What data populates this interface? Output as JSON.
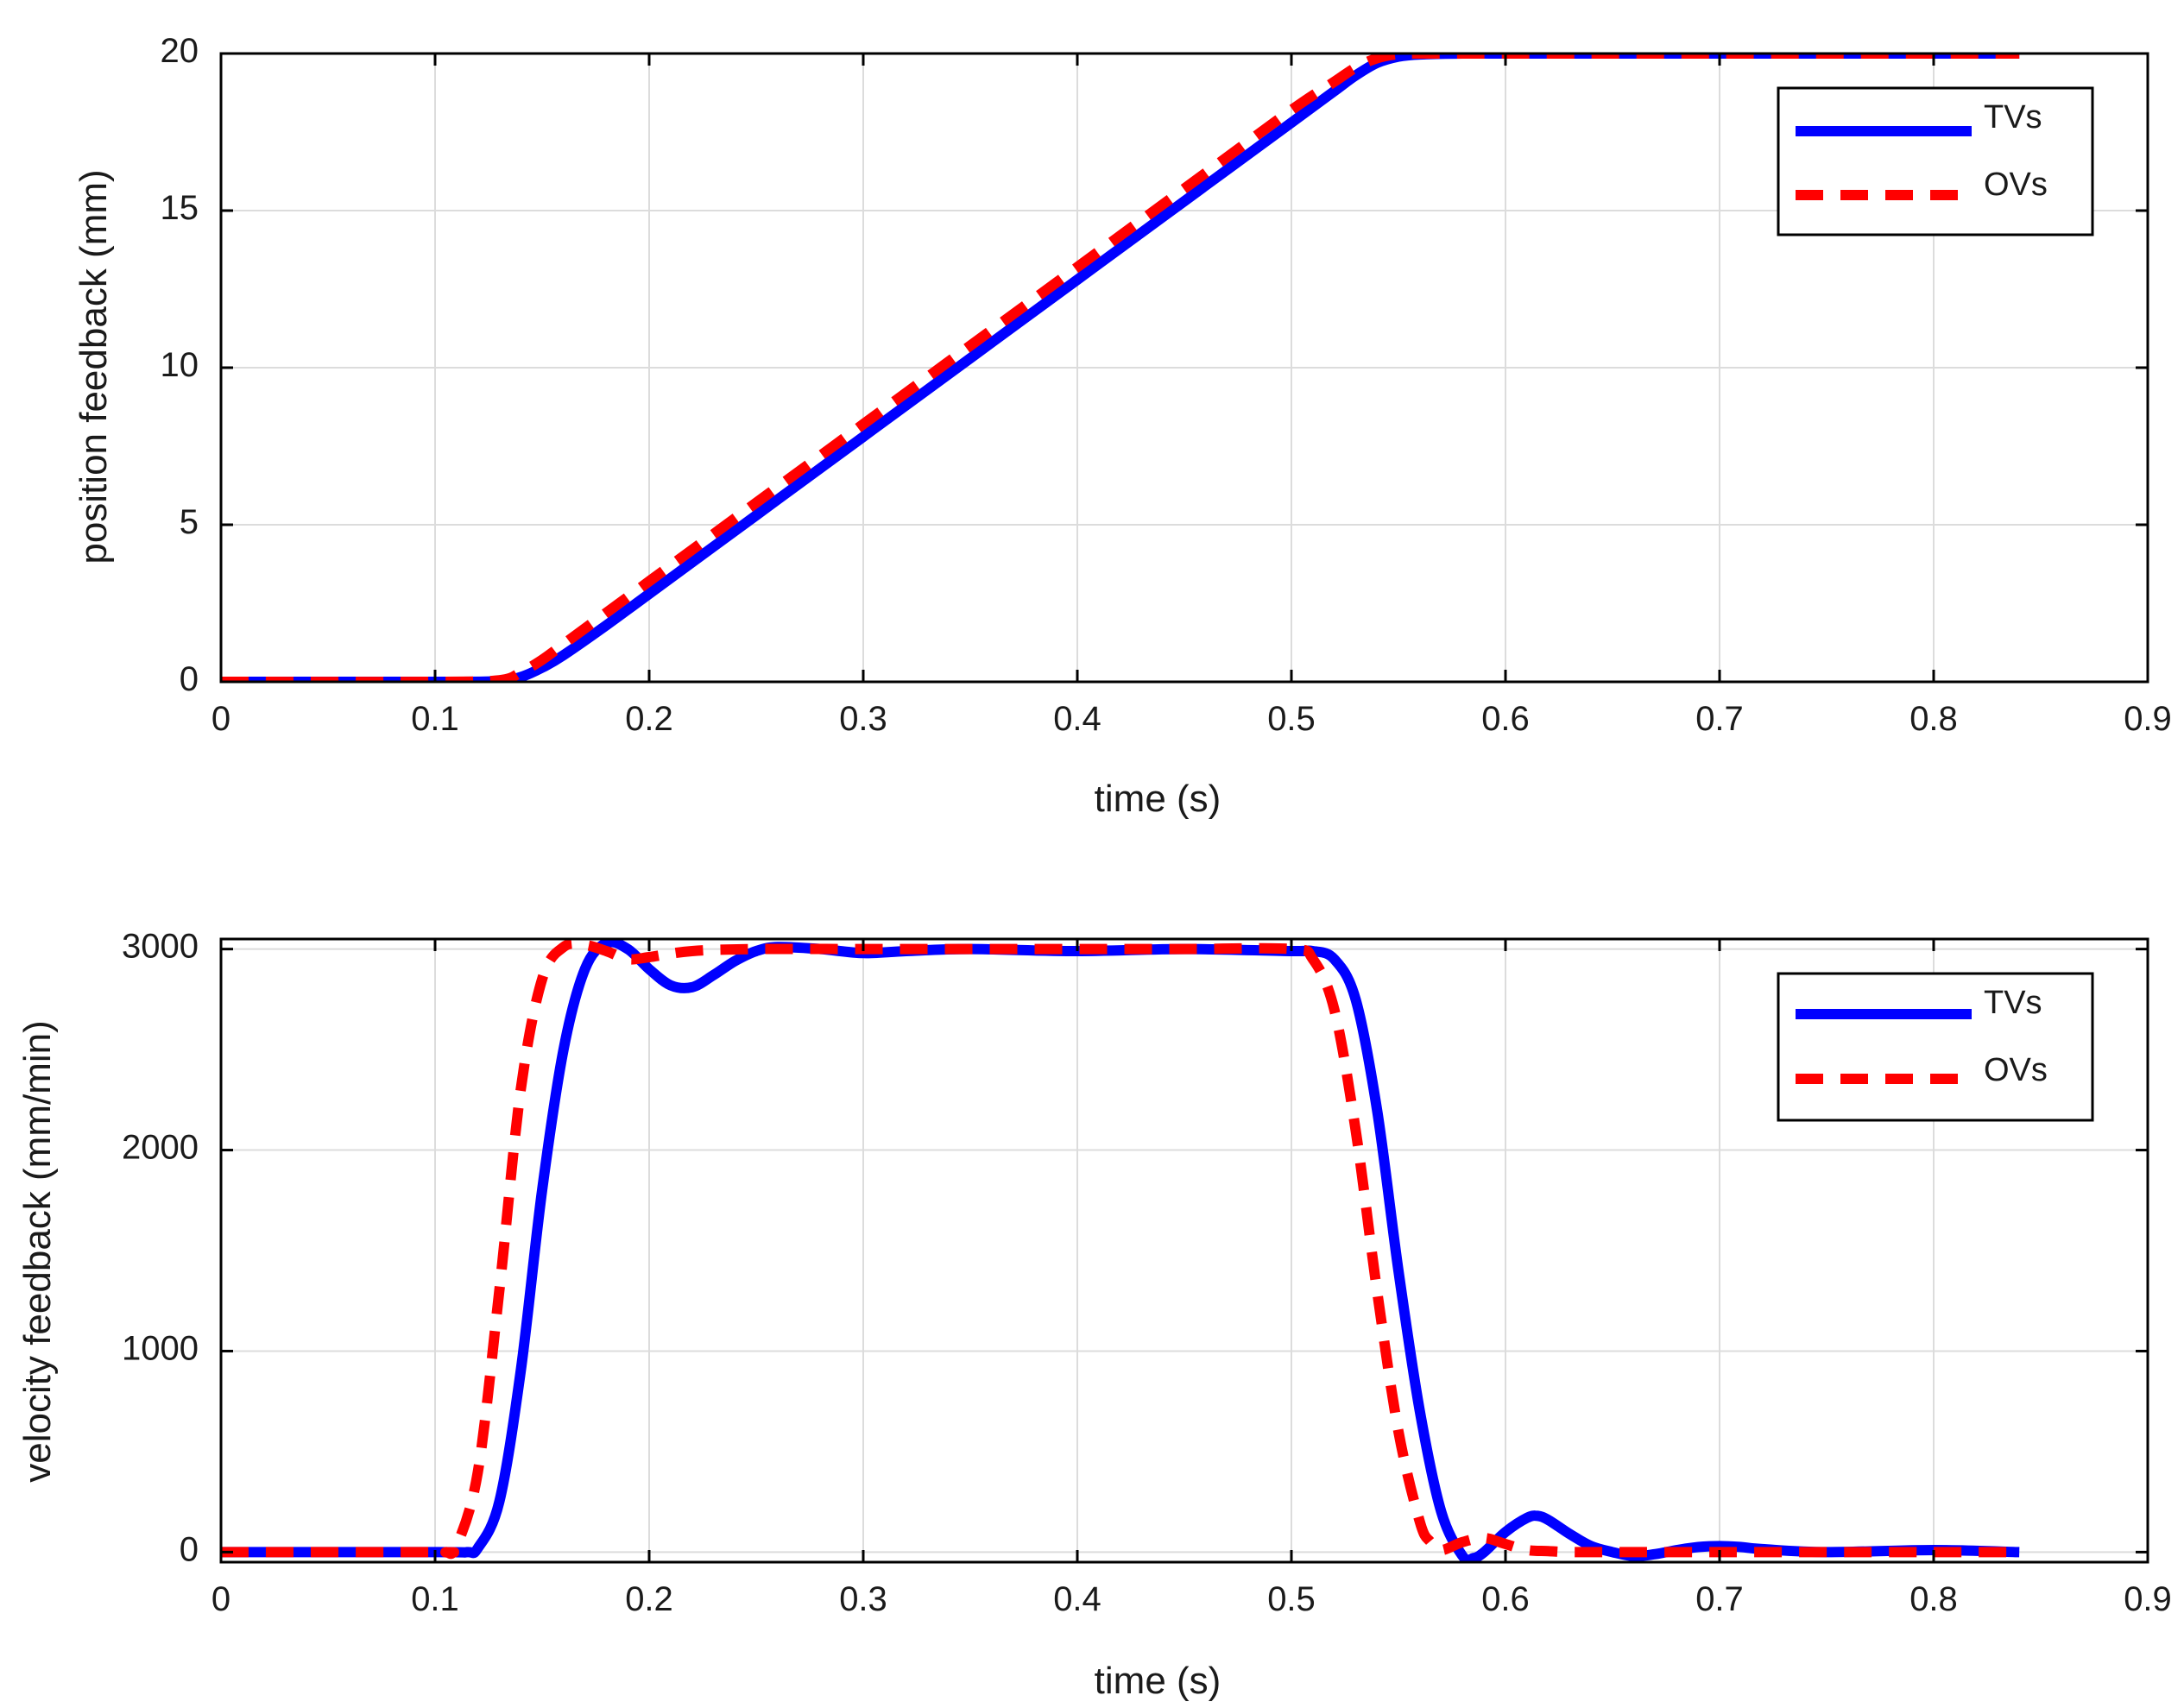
{
  "chart_data": [
    {
      "type": "line",
      "title": "",
      "xlabel": "time (s)",
      "ylabel": "position feedback (mm)",
      "xlim": [
        0,
        0.9
      ],
      "ylim": [
        0,
        20
      ],
      "xticks": [
        "0",
        "0.1",
        "0.2",
        "0.3",
        "0.4",
        "0.5",
        "0.6",
        "0.7",
        "0.8",
        "0.9"
      ],
      "yticks": [
        "0",
        "5",
        "10",
        "15",
        "20"
      ],
      "grid": true,
      "legend_position": "top-right",
      "series": [
        {
          "name": "TVs",
          "color": "#0000ff",
          "style": "solid",
          "x": [
            0,
            0.1,
            0.13,
            0.14,
            0.15,
            0.16,
            0.18,
            0.2,
            0.25,
            0.3,
            0.35,
            0.4,
            0.45,
            0.5,
            0.52,
            0.53,
            0.54,
            0.55,
            0.56,
            0.58,
            0.6,
            0.7,
            0.8,
            0.84
          ],
          "values": [
            0,
            0,
            0.02,
            0.15,
            0.45,
            0.85,
            1.8,
            2.8,
            5.3,
            7.8,
            10.3,
            12.8,
            15.3,
            17.8,
            18.8,
            19.3,
            19.7,
            19.9,
            19.97,
            20,
            20,
            20,
            20,
            20
          ]
        },
        {
          "name": "OVs",
          "color": "#ff0000",
          "style": "dashed",
          "x": [
            0,
            0.1,
            0.13,
            0.14,
            0.15,
            0.16,
            0.18,
            0.2,
            0.25,
            0.3,
            0.35,
            0.4,
            0.45,
            0.5,
            0.52,
            0.53,
            0.54,
            0.55,
            0.56,
            0.58,
            0.6,
            0.7,
            0.8,
            0.84
          ],
          "values": [
            0,
            0,
            0.05,
            0.3,
            0.7,
            1.2,
            2.2,
            3.2,
            5.7,
            8.2,
            10.7,
            13.2,
            15.7,
            18.2,
            19.1,
            19.55,
            19.85,
            19.98,
            20,
            20,
            20,
            20,
            20,
            20
          ]
        }
      ]
    },
    {
      "type": "line",
      "title": "",
      "xlabel": "time (s)",
      "ylabel": "velocity feedback (mm/min)",
      "xlim": [
        0,
        0.9
      ],
      "ylim": [
        -50,
        3050
      ],
      "xticks": [
        "0",
        "0.1",
        "0.2",
        "0.3",
        "0.4",
        "0.5",
        "0.6",
        "0.7",
        "0.8",
        "0.9"
      ],
      "yticks": [
        "0",
        "1000",
        "2000",
        "3000"
      ],
      "grid": true,
      "legend_position": "top-right",
      "series": [
        {
          "name": "TVs",
          "color": "#0000ff",
          "style": "solid",
          "x": [
            0,
            0.1,
            0.115,
            0.12,
            0.13,
            0.14,
            0.15,
            0.16,
            0.17,
            0.18,
            0.19,
            0.2,
            0.21,
            0.22,
            0.23,
            0.24,
            0.25,
            0.26,
            0.28,
            0.3,
            0.32,
            0.35,
            0.4,
            0.45,
            0.5,
            0.51,
            0.52,
            0.53,
            0.54,
            0.55,
            0.56,
            0.57,
            0.58,
            0.585,
            0.59,
            0.6,
            0.61,
            0.615,
            0.62,
            0.63,
            0.64,
            0.65,
            0.66,
            0.67,
            0.68,
            0.69,
            0.7,
            0.71,
            0.72,
            0.75,
            0.8,
            0.84
          ],
          "values": [
            0,
            0,
            0,
            20,
            250,
            900,
            1800,
            2500,
            2900,
            3030,
            3000,
            2900,
            2820,
            2810,
            2870,
            2940,
            2990,
            3010,
            3000,
            2980,
            2990,
            3000,
            2990,
            3000,
            2990,
            2990,
            2950,
            2750,
            2200,
            1400,
            700,
            200,
            -20,
            -30,
            0,
            100,
            170,
            180,
            160,
            90,
            30,
            0,
            -20,
            -10,
            10,
            25,
            30,
            25,
            15,
            0,
            10,
            0
          ]
        },
        {
          "name": "OVs",
          "color": "#ff0000",
          "style": "dashed",
          "x": [
            0,
            0.1,
            0.105,
            0.11,
            0.12,
            0.13,
            0.14,
            0.15,
            0.16,
            0.17,
            0.18,
            0.19,
            0.2,
            0.22,
            0.25,
            0.3,
            0.35,
            0.4,
            0.45,
            0.5,
            0.51,
            0.52,
            0.53,
            0.54,
            0.55,
            0.56,
            0.565,
            0.57,
            0.58,
            0.59,
            0.6,
            0.61,
            0.62,
            0.63,
            0.65,
            0.7,
            0.8,
            0.84
          ],
          "values": [
            0,
            0,
            0,
            30,
            400,
            1300,
            2300,
            2850,
            3010,
            3020,
            2990,
            2950,
            2960,
            2990,
            3000,
            3000,
            3000,
            3000,
            3000,
            3000,
            2950,
            2700,
            2100,
            1300,
            600,
            150,
            50,
            10,
            50,
            70,
            40,
            10,
            5,
            0,
            0,
            0,
            0,
            0
          ]
        }
      ]
    }
  ]
}
